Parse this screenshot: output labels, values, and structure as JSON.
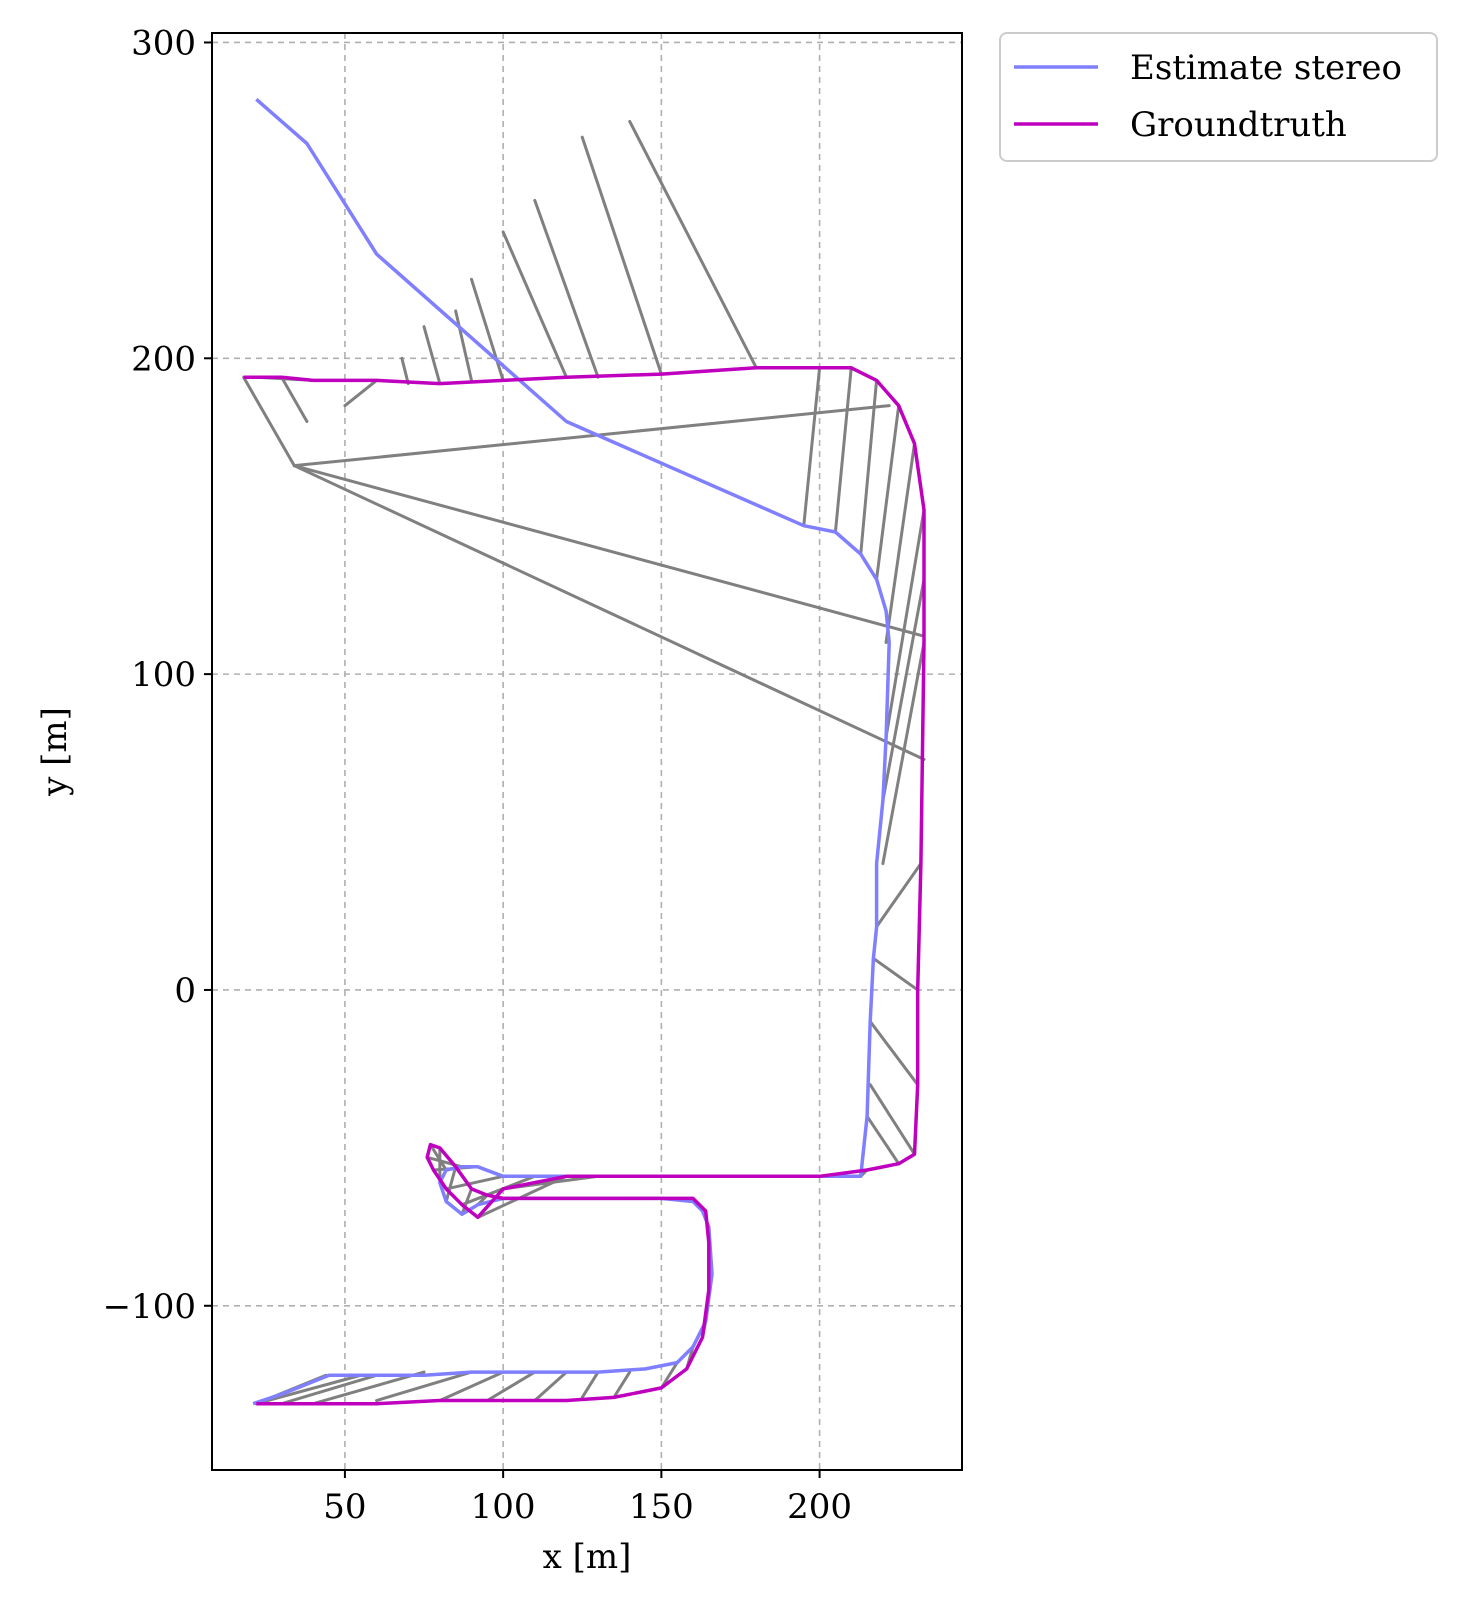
{
  "chart_data": {
    "type": "line",
    "xlabel": "x [m]",
    "ylabel": "y [m]",
    "xlim": [
      8,
      245
    ],
    "ylim": [
      -152,
      303
    ],
    "xticks": [
      50,
      100,
      150,
      200
    ],
    "yticks": [
      -100,
      0,
      100,
      200,
      300
    ],
    "xtick_labels": [
      "50",
      "100",
      "150",
      "200"
    ],
    "ytick_labels": [
      "−100",
      "0",
      "100",
      "200",
      "300"
    ],
    "grid": true,
    "grid_style": "dashed",
    "legend_position": "outside-top-right",
    "series": [
      {
        "name": "Estimate stereo",
        "color": "#7f7fff",
        "x": [
          21,
          30,
          45,
          60,
          75,
          90,
          110,
          130,
          145,
          155,
          160,
          164,
          166,
          165,
          163,
          160,
          150,
          140,
          120,
          100,
          92,
          87,
          82,
          80,
          82,
          87,
          92,
          100,
          120,
          150,
          180,
          200,
          213,
          215,
          216,
          217,
          218,
          218,
          220,
          221,
          222,
          221,
          218,
          213,
          205,
          195,
          120,
          60,
          38,
          22
        ],
        "y": [
          -131,
          -128,
          -122,
          -122,
          -122,
          -121,
          -121,
          -121,
          -120,
          -118,
          -113,
          -105,
          -90,
          -75,
          -70,
          -67,
          -66,
          -66,
          -66,
          -66,
          -68,
          -71,
          -67,
          -61,
          -57,
          -56,
          -56,
          -59,
          -59,
          -59,
          -59,
          -59,
          -59,
          -40,
          -10,
          10,
          20,
          40,
          60,
          80,
          110,
          120,
          130,
          138,
          145,
          147,
          180,
          233,
          268,
          282
        ]
      },
      {
        "name": "Groundtruth",
        "color": "#bf00bf",
        "x": [
          22,
          40,
          60,
          80,
          100,
          120,
          135,
          150,
          158,
          163,
          165,
          165,
          164,
          160,
          150,
          130,
          110,
          100,
          95,
          90,
          85,
          80,
          77,
          76,
          78,
          82,
          87,
          92,
          100,
          120,
          150,
          180,
          200,
          215,
          225,
          230,
          231,
          231,
          232,
          233,
          233,
          230,
          225,
          218,
          210,
          200,
          180,
          150,
          120,
          100,
          80,
          60,
          40,
          30,
          18
        ],
        "y": [
          -131,
          -131,
          -131,
          -130,
          -130,
          -130,
          -129,
          -126,
          -120,
          -110,
          -95,
          -80,
          -70,
          -66,
          -66,
          -66,
          -66,
          -66,
          -65,
          -63,
          -56,
          -50,
          -49,
          -53,
          -57,
          -63,
          -68,
          -72,
          -63,
          -59,
          -59,
          -59,
          -59,
          -57,
          -55,
          -52,
          -30,
          0,
          40,
          110,
          152,
          173,
          185,
          193,
          197,
          197,
          197,
          195,
          194,
          193,
          192,
          193,
          193,
          194,
          194
        ]
      }
    ],
    "connector_color": "#808080",
    "connectors": [
      [
        [
          22,
          -131
        ],
        [
          44,
          -122
        ]
      ],
      [
        [
          22,
          -131
        ],
        [
          55,
          -122
        ]
      ],
      [
        [
          30,
          -131
        ],
        [
          60,
          -122
        ]
      ],
      [
        [
          40,
          -131
        ],
        [
          75,
          -121
        ]
      ],
      [
        [
          60,
          -130
        ],
        [
          90,
          -121
        ]
      ],
      [
        [
          80,
          -130
        ],
        [
          100,
          -121
        ]
      ],
      [
        [
          95,
          -130
        ],
        [
          110,
          -121
        ]
      ],
      [
        [
          110,
          -130
        ],
        [
          120,
          -121
        ]
      ],
      [
        [
          125,
          -129
        ],
        [
          130,
          -121
        ]
      ],
      [
        [
          135,
          -129
        ],
        [
          140,
          -121
        ]
      ],
      [
        [
          150,
          -126
        ],
        [
          155,
          -118
        ]
      ],
      [
        [
          158,
          -120
        ],
        [
          160,
          -113
        ]
      ],
      [
        [
          163,
          -110
        ],
        [
          164,
          -105
        ]
      ],
      [
        [
          165,
          -95
        ],
        [
          166,
          -90
        ]
      ],
      [
        [
          165,
          -80
        ],
        [
          165,
          -75
        ]
      ],
      [
        [
          164,
          -70
        ],
        [
          163,
          -70
        ]
      ],
      [
        [
          160,
          -66
        ],
        [
          150,
          -66
        ]
      ],
      [
        [
          150,
          -66
        ],
        [
          140,
          -66
        ]
      ],
      [
        [
          130,
          -66
        ],
        [
          120,
          -66
        ]
      ],
      [
        [
          110,
          -66
        ],
        [
          100,
          -66
        ]
      ],
      [
        [
          95,
          -65
        ],
        [
          92,
          -68
        ]
      ],
      [
        [
          90,
          -63
        ],
        [
          87,
          -71
        ]
      ],
      [
        [
          85,
          -56
        ],
        [
          82,
          -67
        ]
      ],
      [
        [
          80,
          -50
        ],
        [
          80,
          -61
        ]
      ],
      [
        [
          77,
          -49
        ],
        [
          82,
          -57
        ]
      ],
      [
        [
          76,
          -53
        ],
        [
          87,
          -56
        ]
      ],
      [
        [
          78,
          -57
        ],
        [
          92,
          -56
        ]
      ],
      [
        [
          82,
          -63
        ],
        [
          100,
          -59
        ]
      ],
      [
        [
          87,
          -68
        ],
        [
          110,
          -59
        ]
      ],
      [
        [
          92,
          -72
        ],
        [
          120,
          -59
        ]
      ],
      [
        [
          100,
          -63
        ],
        [
          130,
          -59
        ]
      ],
      [
        [
          120,
          -59
        ],
        [
          150,
          -59
        ]
      ],
      [
        [
          150,
          -59
        ],
        [
          170,
          -59
        ]
      ],
      [
        [
          180,
          -59
        ],
        [
          190,
          -59
        ]
      ],
      [
        [
          200,
          -59
        ],
        [
          205,
          -59
        ]
      ],
      [
        [
          215,
          -57
        ],
        [
          213,
          -59
        ]
      ],
      [
        [
          225,
          -55
        ],
        [
          215,
          -40
        ]
      ],
      [
        [
          230,
          -52
        ],
        [
          216,
          -30
        ]
      ],
      [
        [
          231,
          -30
        ],
        [
          216,
          -10
        ]
      ],
      [
        [
          231,
          0
        ],
        [
          217,
          10
        ]
      ],
      [
        [
          232,
          40
        ],
        [
          218,
          20
        ]
      ],
      [
        [
          233,
          110
        ],
        [
          220,
          40
        ]
      ],
      [
        [
          233,
          130
        ],
        [
          220,
          60
        ]
      ],
      [
        [
          233,
          152
        ],
        [
          221,
          80
        ]
      ],
      [
        [
          230,
          173
        ],
        [
          221,
          110
        ]
      ],
      [
        [
          225,
          185
        ],
        [
          218,
          130
        ]
      ],
      [
        [
          218,
          193
        ],
        [
          213,
          138
        ]
      ],
      [
        [
          210,
          197
        ],
        [
          205,
          145
        ]
      ],
      [
        [
          200,
          197
        ],
        [
          195,
          147
        ]
      ],
      [
        [
          180,
          197
        ],
        [
          140,
          275
        ]
      ],
      [
        [
          150,
          195
        ],
        [
          125,
          270
        ]
      ],
      [
        [
          130,
          194
        ],
        [
          110,
          250
        ]
      ],
      [
        [
          120,
          194
        ],
        [
          100,
          240
        ]
      ],
      [
        [
          100,
          193
        ],
        [
          90,
          225
        ]
      ],
      [
        [
          90,
          193
        ],
        [
          85,
          215
        ]
      ],
      [
        [
          80,
          192
        ],
        [
          75,
          210
        ]
      ],
      [
        [
          70,
          192
        ],
        [
          68,
          200
        ]
      ],
      [
        [
          60,
          193
        ],
        [
          50,
          185
        ]
      ],
      [
        [
          40,
          193
        ],
        [
          22,
          194
        ]
      ],
      [
        [
          30,
          194
        ],
        [
          38,
          180
        ]
      ],
      [
        [
          18,
          194
        ],
        [
          34,
          166
        ]
      ],
      [
        [
          34,
          166
        ],
        [
          222,
          185
        ]
      ],
      [
        [
          34,
          166
        ],
        [
          233,
          112
        ]
      ],
      [
        [
          34,
          166
        ],
        [
          233,
          73
        ]
      ]
    ]
  },
  "legend": {
    "items": [
      {
        "label": "Estimate stereo",
        "color": "#7f7fff"
      },
      {
        "label": "Groundtruth",
        "color": "#bf00bf"
      }
    ]
  }
}
